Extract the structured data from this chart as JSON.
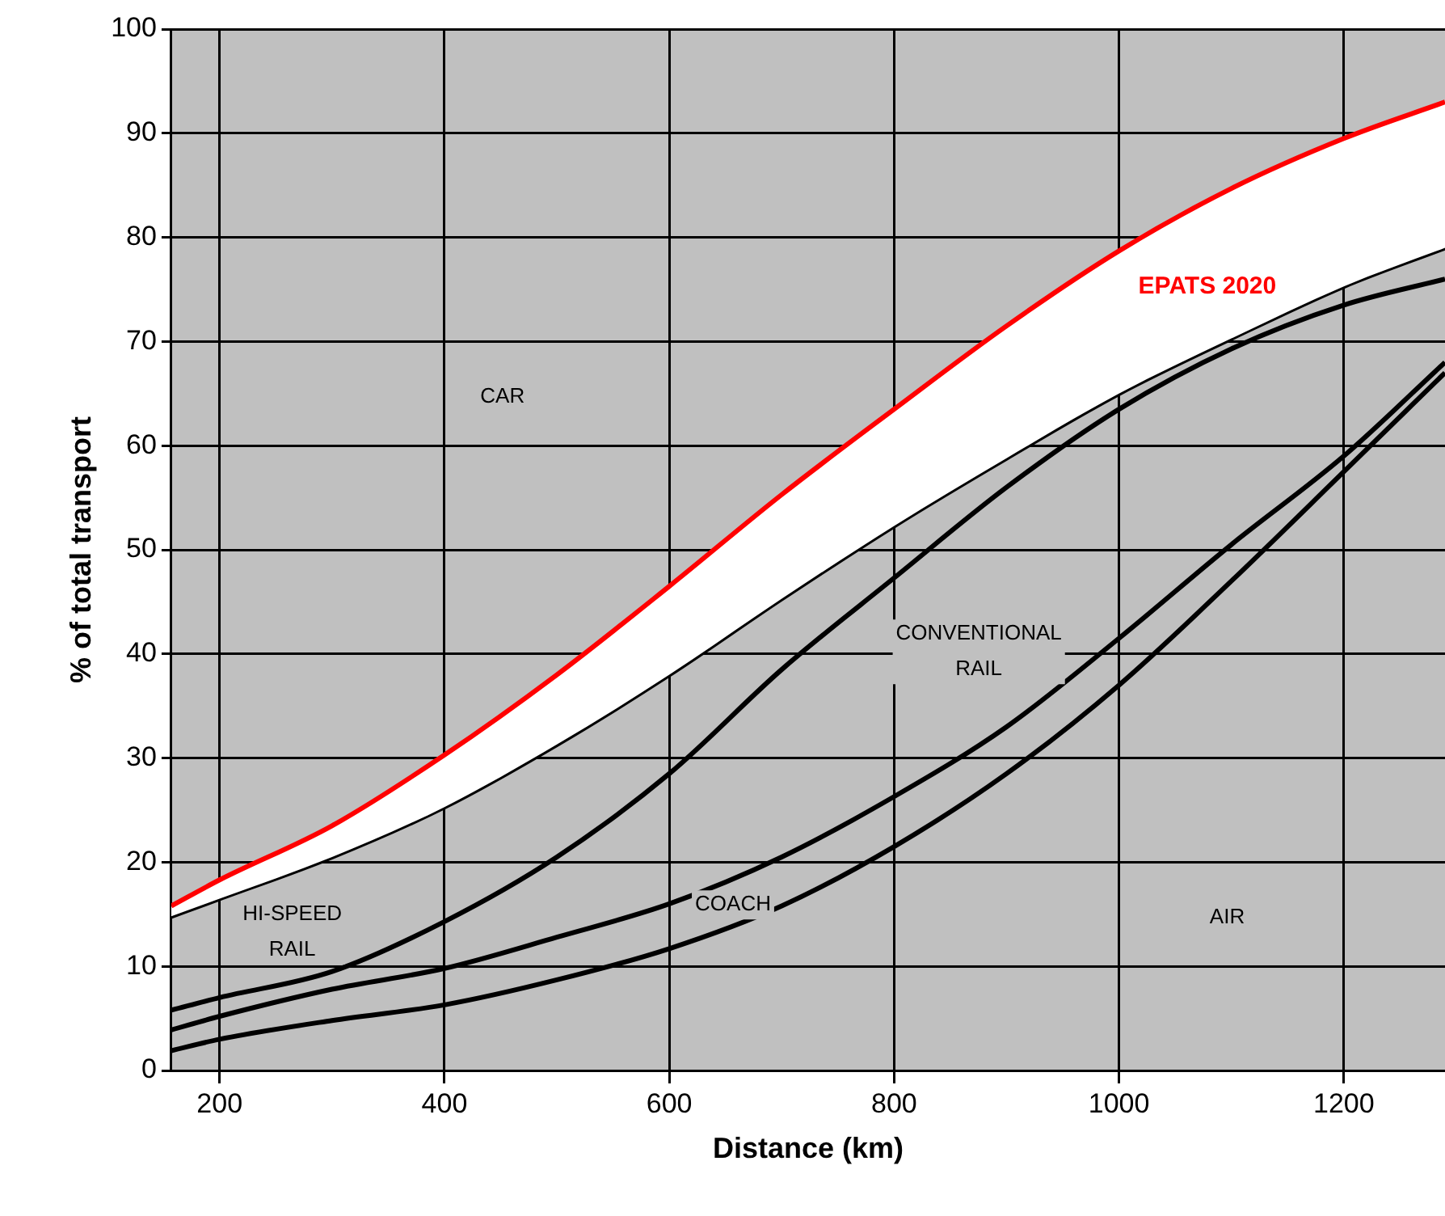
{
  "chart_data": {
    "type": "line",
    "xlabel": "Distance (km)",
    "ylabel": "% of total transport",
    "x": [
      157,
      200,
      300,
      400,
      500,
      600,
      700,
      800,
      900,
      1000,
      1100,
      1200,
      1290
    ],
    "series": [
      {
        "name": "EPATS 2020",
        "type": "area",
        "color": "#ff0000",
        "values": [
          15.8,
          18.3,
          23.5,
          30.3,
          38,
          46.5,
          55.3,
          63.5,
          71.5,
          78.7,
          84.7,
          89.5,
          93
        ]
      },
      {
        "color": "#000000",
        "values": [
          14.8,
          16.5,
          20.5,
          25.3,
          31.3,
          38,
          45.3,
          52.3,
          58.8,
          65,
          70.3,
          75.3,
          79
        ]
      },
      {
        "color": "#000000",
        "values": [
          5.8,
          7,
          9.5,
          14.3,
          20.5,
          28.5,
          38.5,
          47.3,
          56,
          63.5,
          69.3,
          73.5,
          76
        ]
      },
      {
        "color": "#000000",
        "values": [
          3.9,
          5.2,
          7.8,
          9.8,
          12.8,
          16,
          20.5,
          26.3,
          33,
          41.5,
          50.5,
          59,
          68
        ]
      },
      {
        "color": "#000000",
        "values": [
          1.9,
          3,
          4.8,
          6.3,
          8.7,
          11.7,
          15.8,
          21.5,
          28.5,
          37,
          47,
          57.5,
          67
        ]
      }
    ],
    "annotations": [
      "CAR",
      "HI-SPEED\nRAIL",
      "CONVENTIONAL\nRAIL",
      "COACH",
      "AIR"
    ],
    "xlim": [
      157,
      1290
    ],
    "xticks": [
      200,
      400,
      600,
      800,
      1000,
      1200
    ],
    "ylim": [
      0,
      100
    ],
    "yticks": [
      0,
      10,
      20,
      30,
      40,
      50,
      60,
      70,
      80,
      90,
      100
    ],
    "grid": true,
    "legend": false,
    "marker": "none",
    "line_style": "solid"
  }
}
